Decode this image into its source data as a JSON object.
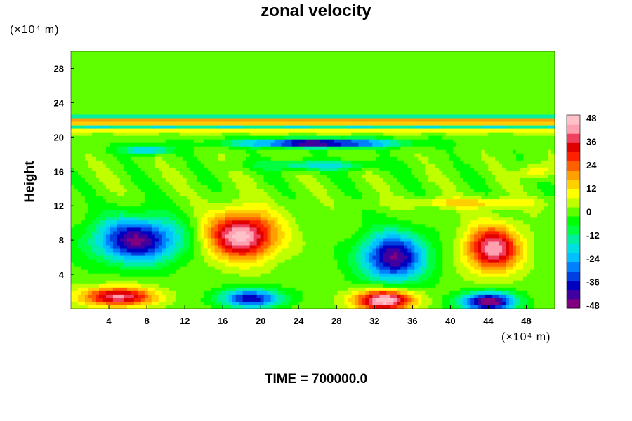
{
  "chart_data": {
    "type": "heatmap",
    "title": "zonal velocity",
    "ylabel": "Height",
    "x_unit": "(×10⁴ m)",
    "y_unit": "(×10⁴ m)",
    "footer": "TIME = 700000.0",
    "x_range": [
      0,
      51
    ],
    "y_range": [
      0,
      30
    ],
    "x_ticks": [
      "4",
      "8",
      "12",
      "16",
      "20",
      "24",
      "28",
      "32",
      "36",
      "40",
      "44",
      "48"
    ],
    "y_ticks": [
      "4",
      "8",
      "12",
      "16",
      "20",
      "24",
      "28"
    ],
    "colorbar": {
      "range": [
        -48,
        48
      ],
      "tick_labels": [
        "48",
        "36",
        "24",
        "12",
        "0",
        "-12",
        "-24",
        "-36",
        "-48"
      ],
      "colors": [
        "#800080",
        "#4000a0",
        "#0000c0",
        "#0040e0",
        "#0080ff",
        "#00c0ff",
        "#00e0e0",
        "#00f0a0",
        "#00ff40",
        "#00ff00",
        "#60ff00",
        "#c0ff00",
        "#ffff00",
        "#ffd000",
        "#ffa000",
        "#ff6000",
        "#ff2000",
        "#e00000",
        "#f04060",
        "#ffa0b0",
        "#ffc0c8"
      ]
    },
    "features": [
      {
        "x": 7,
        "y": 8,
        "v": -44,
        "sx": 4.5,
        "sy": 2.6
      },
      {
        "x": 18,
        "y": 8.5,
        "v": 46,
        "sx": 3.6,
        "sy": 2.7
      },
      {
        "x": 34,
        "y": 6,
        "v": -44,
        "sx": 3.4,
        "sy": 2.8
      },
      {
        "x": 44.5,
        "y": 7,
        "v": 42,
        "sx": 2.8,
        "sy": 2.6
      },
      {
        "x": 5,
        "y": 1.4,
        "v": 40,
        "sx": 3.8,
        "sy": 1.1
      },
      {
        "x": 19,
        "y": 1.2,
        "v": -38,
        "sx": 3.2,
        "sy": 1.1
      },
      {
        "x": 33,
        "y": 1.0,
        "v": 50,
        "sx": 3.0,
        "sy": 1.2
      },
      {
        "x": 44,
        "y": 0.8,
        "v": -50,
        "sx": 2.8,
        "sy": 1.1
      },
      {
        "x": 26,
        "y": 19.3,
        "v": -46,
        "sx": 8,
        "sy": 0.5
      },
      {
        "x": 8,
        "y": 18.5,
        "v": -25,
        "sx": 2.5,
        "sy": 0.5
      },
      {
        "x": 26,
        "y": 16.7,
        "v": -18,
        "sx": 6,
        "sy": 0.6
      },
      {
        "x": 42,
        "y": 12.3,
        "v": 14,
        "sx": 7,
        "sy": 0.6
      },
      {
        "x": 49,
        "y": 16,
        "v": 14,
        "sx": 1.5,
        "sy": 0.8
      }
    ],
    "bands": [
      {
        "y": 21.8,
        "v": 32,
        "s": 0.25
      },
      {
        "y": 22.4,
        "v": -14,
        "s": 0.2
      },
      {
        "y": 21.2,
        "v": -16,
        "s": 0.2
      },
      {
        "y": 20.6,
        "v": 16,
        "s": 0.2
      }
    ]
  }
}
